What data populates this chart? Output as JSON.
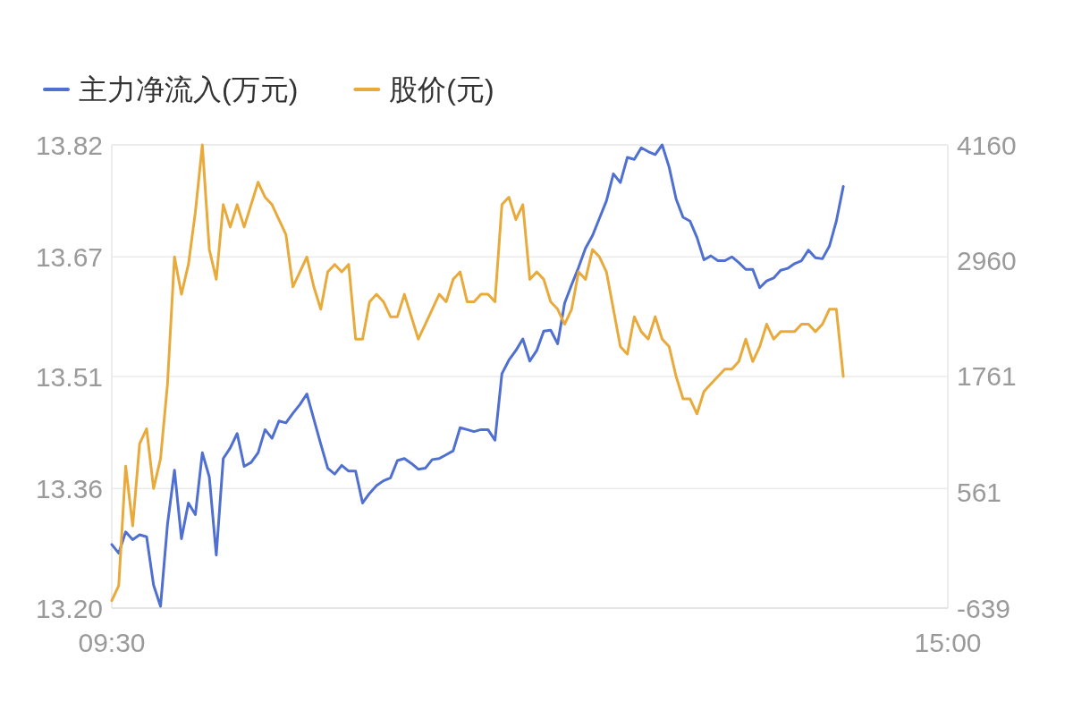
{
  "chart_data": {
    "type": "line",
    "legend": "top left",
    "grid": "y",
    "categories": [
      "09:30",
      null,
      null,
      null,
      null,
      null,
      null,
      null,
      null,
      null,
      null,
      null,
      null,
      null,
      null,
      null,
      null,
      null,
      null,
      null,
      null,
      null,
      null,
      null,
      null,
      null,
      null,
      null,
      null,
      null,
      null,
      null,
      null,
      null,
      null,
      null,
      null,
      null,
      null,
      null,
      null,
      null,
      null,
      null,
      null,
      null,
      null,
      null,
      null,
      null,
      null,
      null,
      null,
      null,
      null,
      null,
      null,
      null,
      null,
      null,
      null,
      null,
      null,
      null,
      null,
      null,
      null,
      null,
      null,
      null,
      null,
      null,
      null,
      null,
      null,
      null,
      null,
      null,
      null,
      null,
      null,
      null,
      null,
      null,
      null,
      null,
      null,
      null,
      null,
      null,
      null,
      null,
      null,
      null,
      null,
      null,
      null,
      null,
      null,
      null,
      null,
      null,
      null,
      null,
      null,
      null,
      null,
      null,
      null,
      null,
      null,
      null,
      null,
      null,
      null,
      null,
      null,
      null,
      null,
      null,
      "15:00"
    ],
    "ylim": [
      13.2,
      13.82
    ],
    "yticks": [
      {
        "value": 13.2,
        "label": "13.20"
      },
      13.36,
      13.51,
      13.67,
      13.82
    ],
    "y2lim": [
      -639,
      4160
    ],
    "y2ticks": [
      -639,
      561,
      1761,
      2960,
      4160
    ],
    "series": [
      {
        "name": "主力净流入(万元)",
        "color": "#4f6fd1",
        "axis": "y2",
        "values": [
          20,
          -70,
          150,
          70,
          120,
          100,
          -400,
          -620,
          230,
          790,
          80,
          450,
          330,
          970,
          720,
          -90,
          910,
          1020,
          1170,
          830,
          870,
          970,
          1210,
          1120,
          1300,
          1280,
          1380,
          1470,
          1580,
          1320,
          1060,
          810,
          750,
          840,
          780,
          780,
          450,
          550,
          630,
          680,
          710,
          890,
          910,
          860,
          800,
          810,
          900,
          910,
          950,
          990,
          1230,
          1210,
          1190,
          1210,
          1210,
          1100,
          1790,
          1930,
          2030,
          2150,
          1920,
          2030,
          2230,
          2240,
          2100,
          2520,
          2710,
          2890,
          3090,
          3220,
          3400,
          3580,
          3860,
          3770,
          4030,
          4010,
          4130,
          4090,
          4060,
          4160,
          3930,
          3600,
          3410,
          3370,
          3200,
          2970,
          3010,
          2960,
          2960,
          3000,
          2940,
          2870,
          2870,
          2680,
          2750,
          2780,
          2860,
          2880,
          2930,
          2960,
          3070,
          2990,
          2980,
          3110,
          3370,
          3730,
          null,
          null,
          null,
          null,
          null,
          null,
          null,
          null,
          null,
          null,
          null,
          null,
          null,
          null,
          null
        ]
      },
      {
        "name": "股价(元)",
        "color": "#e9aa3c",
        "axis": "y",
        "values": [
          13.21,
          13.23,
          13.39,
          13.31,
          13.42,
          13.44,
          13.36,
          13.4,
          13.5,
          13.67,
          13.62,
          13.66,
          13.73,
          13.82,
          13.68,
          13.64,
          13.74,
          13.71,
          13.74,
          13.71,
          13.74,
          13.77,
          13.75,
          13.74,
          13.72,
          13.7,
          13.63,
          13.65,
          13.67,
          13.63,
          13.6,
          13.65,
          13.66,
          13.65,
          13.66,
          13.56,
          13.56,
          13.61,
          13.62,
          13.61,
          13.59,
          13.59,
          13.62,
          13.59,
          13.56,
          13.58,
          13.6,
          13.62,
          13.61,
          13.64,
          13.65,
          13.61,
          13.61,
          13.62,
          13.62,
          13.61,
          13.74,
          13.75,
          13.72,
          13.74,
          13.64,
          13.65,
          13.64,
          13.61,
          13.6,
          13.58,
          13.6,
          13.65,
          13.64,
          13.68,
          13.67,
          13.65,
          13.6,
          13.55,
          13.54,
          13.59,
          13.57,
          13.56,
          13.59,
          13.56,
          13.55,
          13.51,
          13.48,
          13.48,
          13.46,
          13.49,
          13.5,
          13.51,
          13.52,
          13.52,
          13.53,
          13.56,
          13.53,
          13.55,
          13.58,
          13.56,
          13.57,
          13.57,
          13.57,
          13.58,
          13.58,
          13.57,
          13.58,
          13.6,
          13.6,
          13.51,
          null,
          null,
          null,
          null,
          null,
          null,
          null,
          null,
          null,
          null,
          null,
          null,
          null,
          null,
          null
        ]
      }
    ]
  }
}
